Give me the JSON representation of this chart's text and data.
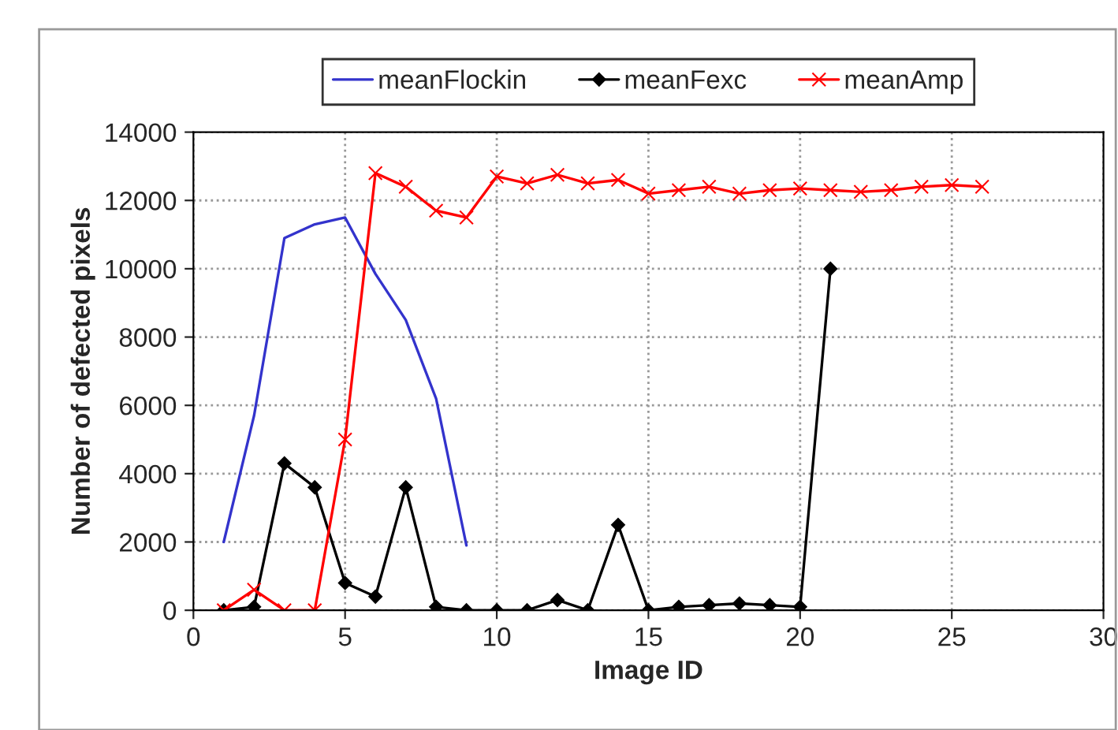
{
  "chart_data": {
    "type": "line",
    "xlabel": "Image ID",
    "ylabel": "Number of defected pixels",
    "xlim": [
      0,
      30
    ],
    "xticks": [
      0,
      5,
      10,
      15,
      20,
      25,
      30
    ],
    "ylim": [
      0,
      14000
    ],
    "yticks": [
      0,
      2000,
      4000,
      6000,
      8000,
      10000,
      12000,
      14000
    ],
    "grid": true,
    "legend": "top",
    "series": [
      {
        "name": "meanFlockin",
        "color": "#3333cc",
        "marker": "none",
        "x": [
          1,
          2,
          3,
          4,
          5,
          6,
          7,
          8,
          9
        ],
        "values": [
          2000,
          5700,
          10900,
          11300,
          11500,
          9850,
          8500,
          6200,
          1900
        ]
      },
      {
        "name": "meanFexc",
        "color": "#000000",
        "marker": "diamond",
        "x": [
          1,
          2,
          3,
          4,
          5,
          6,
          7,
          8,
          9,
          10,
          11,
          12,
          13,
          14,
          15,
          16,
          17,
          18,
          19,
          20,
          21
        ],
        "values": [
          0,
          100,
          4300,
          3600,
          800,
          400,
          3600,
          100,
          0,
          0,
          0,
          300,
          0,
          2500,
          0,
          100,
          150,
          200,
          150,
          100,
          10000
        ]
      },
      {
        "name": "meanAmp",
        "color": "#ff0000",
        "marker": "cross",
        "x": [
          1,
          2,
          3,
          4,
          5,
          6,
          7,
          8,
          9,
          10,
          11,
          12,
          13,
          14,
          15,
          16,
          17,
          18,
          19,
          20,
          21,
          22,
          23,
          24,
          25,
          26
        ],
        "values": [
          0,
          600,
          0,
          0,
          5000,
          12800,
          12400,
          11700,
          11500,
          12700,
          12500,
          12750,
          12500,
          12600,
          12200,
          12300,
          12400,
          12200,
          12300,
          12350,
          12300,
          12250,
          12300,
          12400,
          12450,
          12400
        ]
      }
    ]
  }
}
